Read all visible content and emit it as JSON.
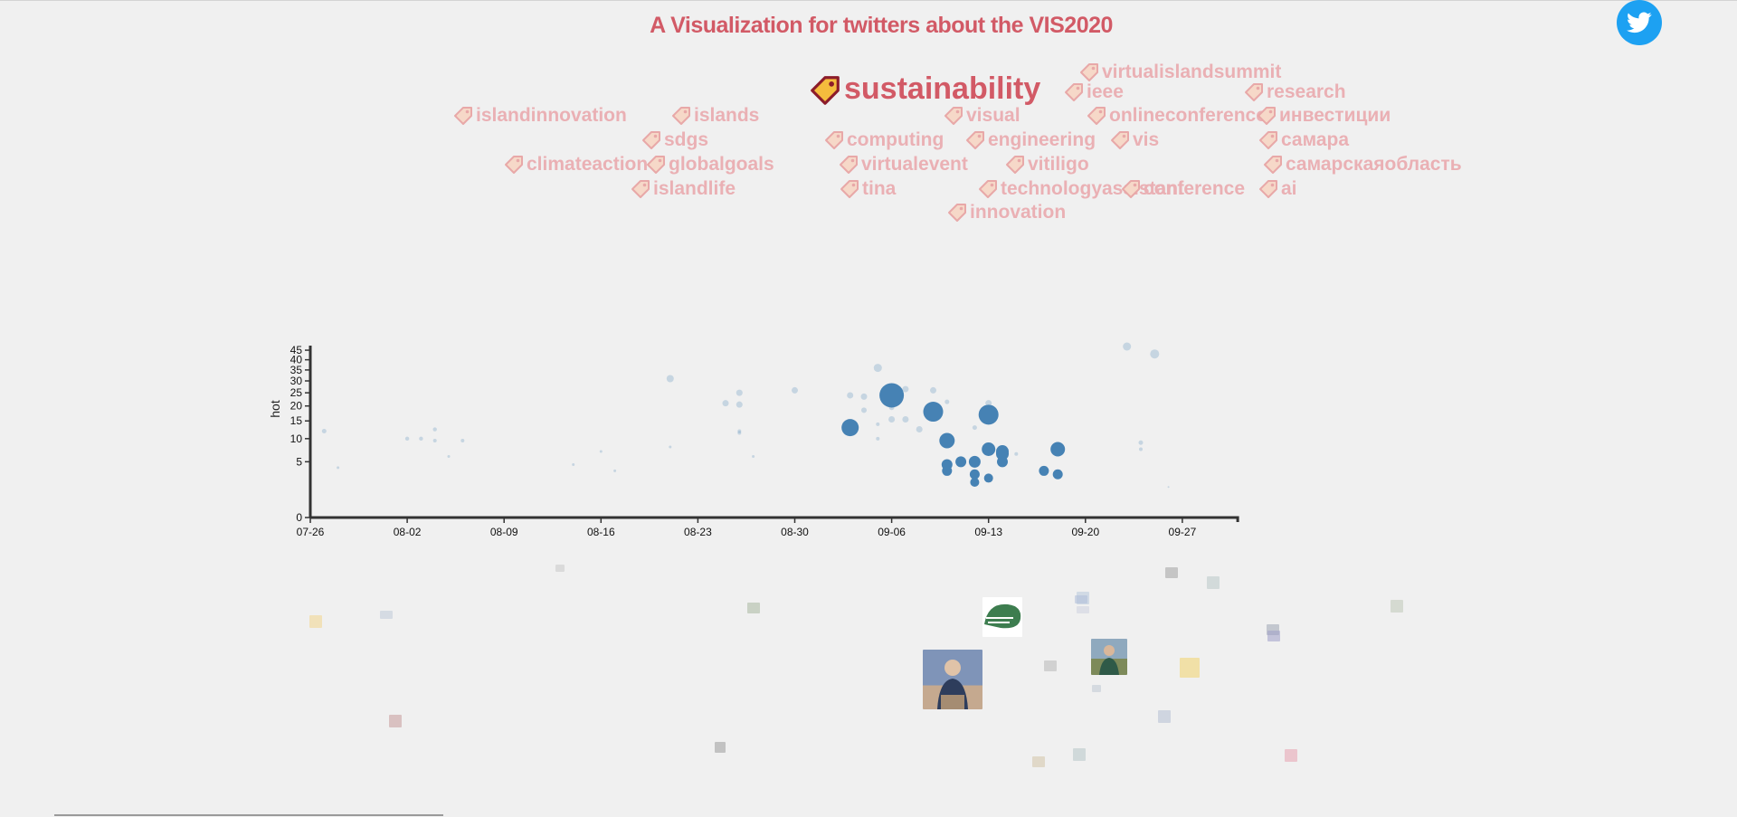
{
  "header": {
    "title": "A Visualization for twitters about the VIS2020",
    "twitter_icon": "twitter-bird-icon",
    "title_color": "#d25a66"
  },
  "tags": [
    {
      "label": "sustainability",
      "emphasis": true
    },
    {
      "label": "virtualislandsummit"
    },
    {
      "label": "ieee"
    },
    {
      "label": "research"
    },
    {
      "label": "islandinnovation"
    },
    {
      "label": "islands"
    },
    {
      "label": "visual"
    },
    {
      "label": "onlineconference"
    },
    {
      "label": "инвестиции"
    },
    {
      "label": "sdgs"
    },
    {
      "label": "computing"
    },
    {
      "label": "engineering"
    },
    {
      "label": "vis"
    },
    {
      "label": "самара"
    },
    {
      "label": "climateaction"
    },
    {
      "label": "globalgoals"
    },
    {
      "label": "virtualevent"
    },
    {
      "label": "vitiligo"
    },
    {
      "label": "самарскаяобласть"
    },
    {
      "label": "islandlife"
    },
    {
      "label": "tina"
    },
    {
      "label": "technologyassistant"
    },
    {
      "label": "conference"
    },
    {
      "label": "ai"
    },
    {
      "label": "innovation"
    }
  ],
  "chart_data": {
    "type": "scatter",
    "ylabel": "hot",
    "xlabel": "",
    "x_ticks": [
      "07-26",
      "08-02",
      "08-09",
      "08-16",
      "08-23",
      "08-30",
      "09-06",
      "09-13",
      "09-20",
      "09-27"
    ],
    "y_ticks": [
      0,
      5,
      10,
      15,
      20,
      25,
      30,
      35,
      40,
      45
    ],
    "xlim": [
      "07-26",
      "10-01"
    ],
    "ylim": [
      0,
      48
    ],
    "y_scale": "sqrt",
    "colors": {
      "point": "#4682b4",
      "axis": "#333333"
    },
    "series": [
      {
        "values": [
          {
            "x": "07-27",
            "y": 12,
            "r": 2.5,
            "hl": false
          },
          {
            "x": "07-28",
            "y": 4,
            "r": 1.5,
            "hl": false
          },
          {
            "x": "08-02",
            "y": 10,
            "r": 2.2,
            "hl": false
          },
          {
            "x": "08-03",
            "y": 10,
            "r": 2.2,
            "hl": false
          },
          {
            "x": "08-04",
            "y": 12.5,
            "r": 2.2,
            "hl": false
          },
          {
            "x": "08-04",
            "y": 9.5,
            "r": 2,
            "hl": false
          },
          {
            "x": "08-05",
            "y": 6,
            "r": 1.5,
            "hl": false
          },
          {
            "x": "08-06",
            "y": 9.5,
            "r": 2,
            "hl": false
          },
          {
            "x": "08-14",
            "y": 4.5,
            "r": 1.5,
            "hl": false
          },
          {
            "x": "08-16",
            "y": 7,
            "r": 1.5,
            "hl": false
          },
          {
            "x": "08-17",
            "y": 3.5,
            "r": 1.5,
            "hl": false
          },
          {
            "x": "08-21",
            "y": 31,
            "r": 4,
            "hl": false
          },
          {
            "x": "08-21",
            "y": 8,
            "r": 1.5,
            "hl": false
          },
          {
            "x": "08-25",
            "y": 21,
            "r": 3.5,
            "hl": false
          },
          {
            "x": "08-26",
            "y": 25,
            "r": 3.5,
            "hl": false
          },
          {
            "x": "08-26",
            "y": 20.5,
            "r": 3.5,
            "hl": false
          },
          {
            "x": "08-26",
            "y": 11.5,
            "r": 2,
            "hl": false
          },
          {
            "x": "08-26",
            "y": 12,
            "r": 2,
            "hl": false
          },
          {
            "x": "08-27",
            "y": 6,
            "r": 1.5,
            "hl": false
          },
          {
            "x": "08-30",
            "y": 26,
            "r": 3.5,
            "hl": false
          },
          {
            "x": "09-03",
            "y": 24,
            "r": 3.5,
            "hl": false
          },
          {
            "x": "09-03",
            "y": 14.5,
            "r": 2,
            "hl": false
          },
          {
            "x": "09-04",
            "y": 23.5,
            "r": 3.5,
            "hl": false
          },
          {
            "x": "09-04",
            "y": 18.5,
            "r": 3,
            "hl": false
          },
          {
            "x": "09-05",
            "y": 36,
            "r": 4.5,
            "hl": false
          },
          {
            "x": "09-05",
            "y": 14,
            "r": 2,
            "hl": false
          },
          {
            "x": "09-05",
            "y": 10,
            "r": 2,
            "hl": false
          },
          {
            "x": "09-06",
            "y": 19.5,
            "r": 3,
            "hl": false
          },
          {
            "x": "09-06",
            "y": 15.5,
            "r": 3.5,
            "hl": false
          },
          {
            "x": "09-07",
            "y": 15.5,
            "r": 3.5,
            "hl": false
          },
          {
            "x": "09-07",
            "y": 26.5,
            "r": 3.5,
            "hl": false
          },
          {
            "x": "09-08",
            "y": 12.5,
            "r": 3.5,
            "hl": false
          },
          {
            "x": "09-09",
            "y": 26,
            "r": 3.5,
            "hl": false
          },
          {
            "x": "09-10",
            "y": 21.5,
            "r": 2.5,
            "hl": false
          },
          {
            "x": "09-12",
            "y": 13,
            "r": 2.5,
            "hl": false
          },
          {
            "x": "09-13",
            "y": 21,
            "r": 3.5,
            "hl": false
          },
          {
            "x": "09-14",
            "y": 8,
            "r": 2,
            "hl": false
          },
          {
            "x": "09-15",
            "y": 6.5,
            "r": 2,
            "hl": false
          },
          {
            "x": "09-23",
            "y": 47,
            "r": 4.5,
            "hl": false
          },
          {
            "x": "09-24",
            "y": 9,
            "r": 2.5,
            "hl": false
          },
          {
            "x": "09-24",
            "y": 7.5,
            "r": 2,
            "hl": false
          },
          {
            "x": "09-25",
            "y": 43,
            "r": 5,
            "hl": false
          },
          {
            "x": "09-26",
            "y": 1.5,
            "r": 1,
            "hl": false
          },
          {
            "x": "09-06",
            "y": 24,
            "r": 13.5,
            "hl": true
          },
          {
            "x": "09-09",
            "y": 18,
            "r": 11,
            "hl": true
          },
          {
            "x": "09-13",
            "y": 17,
            "r": 11,
            "hl": true
          },
          {
            "x": "09-03",
            "y": 13,
            "r": 9.5,
            "hl": true
          },
          {
            "x": "09-10",
            "y": 9.5,
            "r": 8.5,
            "hl": true
          },
          {
            "x": "09-13",
            "y": 7.5,
            "r": 7.5,
            "hl": true
          },
          {
            "x": "09-14",
            "y": 7,
            "r": 7,
            "hl": true
          },
          {
            "x": "09-14",
            "y": 6.5,
            "r": 7,
            "hl": true
          },
          {
            "x": "09-18",
            "y": 7.5,
            "r": 8,
            "hl": true
          },
          {
            "x": "09-14",
            "y": 5,
            "r": 6,
            "hl": true
          },
          {
            "x": "09-11",
            "y": 5,
            "r": 6,
            "hl": true
          },
          {
            "x": "09-12",
            "y": 5,
            "r": 6.5,
            "hl": true
          },
          {
            "x": "09-10",
            "y": 4.5,
            "r": 6,
            "hl": true
          },
          {
            "x": "09-10",
            "y": 3.5,
            "r": 5.5,
            "hl": true
          },
          {
            "x": "09-17",
            "y": 3.5,
            "r": 5.5,
            "hl": true
          },
          {
            "x": "09-18",
            "y": 3,
            "r": 5.5,
            "hl": true
          },
          {
            "x": "09-12",
            "y": 3,
            "r": 5.5,
            "hl": true
          },
          {
            "x": "09-13",
            "y": 2.5,
            "r": 5,
            "hl": true
          },
          {
            "x": "09-12",
            "y": 2,
            "r": 5,
            "hl": true
          }
        ]
      }
    ]
  },
  "media": {
    "thumbnails": [
      {
        "name": "thumb-person-speaker",
        "color": "#7b8aa6"
      },
      {
        "name": "thumb-island-innovation-logo",
        "color": "#3d7d4f"
      },
      {
        "name": "thumb-person-outdoor",
        "color": "#5b7c8c"
      },
      {
        "name": "thumb-small",
        "color": "#f3d58c"
      },
      {
        "name": "thumb-small",
        "color": "#bfcad8"
      },
      {
        "name": "thumb-small",
        "color": "#c9c9c9"
      },
      {
        "name": "thumb-small",
        "color": "#a9b8a0"
      },
      {
        "name": "thumb-small",
        "color": "#c79a9a"
      },
      {
        "name": "thumb-small",
        "color": "#9c9c9c"
      },
      {
        "name": "thumb-small",
        "color": "#b8c9dc"
      },
      {
        "name": "thumb-small",
        "color": "#a3a3a3"
      },
      {
        "name": "thumb-small",
        "color": "#bac9c9"
      },
      {
        "name": "thumb-small",
        "color": "#aebed8"
      },
      {
        "name": "thumb-small",
        "color": "#cdd2e0"
      },
      {
        "name": "thumb-small",
        "color": "#9fa6b5"
      },
      {
        "name": "thumb-small",
        "color": "#f2d36b"
      },
      {
        "name": "thumb-small",
        "color": "#b4bfd4"
      },
      {
        "name": "thumb-small",
        "color": "#9e9fc9"
      },
      {
        "name": "thumb-small",
        "color": "#c0c8b8"
      },
      {
        "name": "thumb-small",
        "color": "#b7c6c8"
      },
      {
        "name": "thumb-small",
        "color": "#d3c4a8"
      },
      {
        "name": "thumb-small",
        "color": "#e8a3b0"
      },
      {
        "name": "thumb-small",
        "color": "#b8b8b8"
      },
      {
        "name": "thumb-small",
        "color": "#bfc8d4"
      }
    ]
  }
}
